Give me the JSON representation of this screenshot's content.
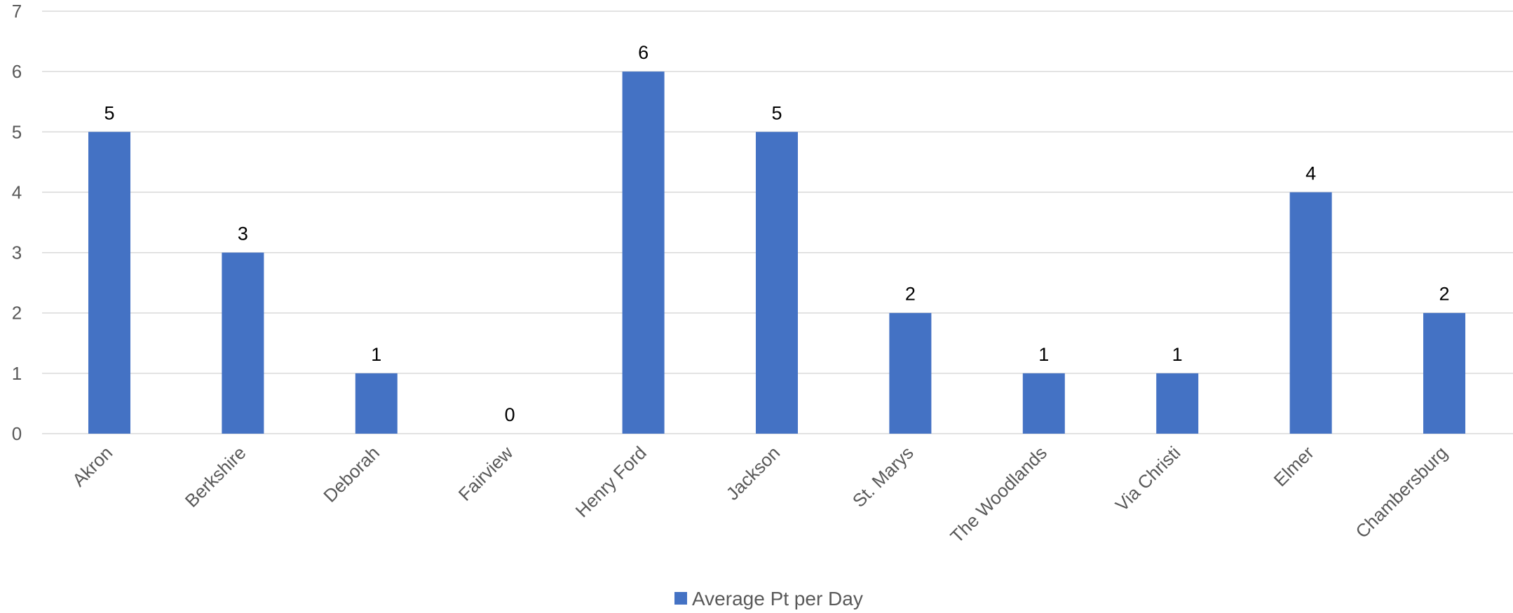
{
  "chart_data": {
    "type": "bar",
    "categories": [
      "Akron",
      "Berkshire",
      "Deborah",
      "Fairview",
      "Henry Ford",
      "Jackson",
      "St. Marys",
      "The Woodlands",
      "Via Christi",
      "Elmer",
      "Chambersburg"
    ],
    "series": [
      {
        "name": "Average Pt per Day",
        "values": [
          5,
          3,
          1,
          0,
          6,
          5,
          2,
          1,
          1,
          4,
          2
        ],
        "color": "#4472c4"
      }
    ],
    "title": "",
    "xlabel": "",
    "ylabel": "",
    "ylim": [
      0,
      7
    ],
    "yticks": [
      "0",
      "1",
      "2",
      "3",
      "4",
      "5",
      "6",
      "7"
    ],
    "grid": true,
    "data_labels": true,
    "legend_position": "bottom"
  }
}
